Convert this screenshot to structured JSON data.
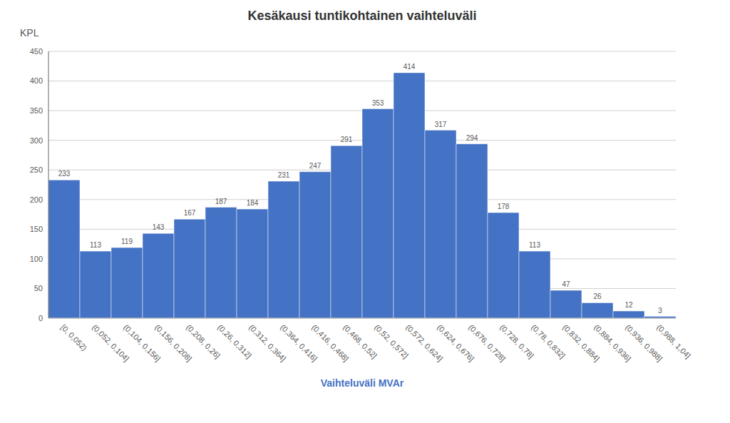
{
  "chart_data": {
    "type": "bar",
    "title": "Kesäkausi tuntikohtainen vaihteluväli",
    "xlabel": "Vaihteluväli MVAr",
    "ylabel": "KPL",
    "categories": [
      "[0, 0,052)",
      "(0,052, 0,104]",
      "(0,104, 0,156]",
      "(0,156, 0,208]",
      "(0,208, 0,26]",
      "(0,26, 0,312]",
      "(0,312, 0,364]",
      "(0,364, 0,416]",
      "(0,416, 0,468]",
      "(0,468, 0,52]",
      "(0,52, 0,572]",
      "(0,572, 0,624]",
      "(0,624, 0,676]",
      "(0,676, 0,728]",
      "(0,728, 0,78]",
      "(0,78, 0,832]",
      "(0,832, 0,884]",
      "(0,884, 0,936]",
      "(0,936, 0,988]",
      "(0,988, 1,04]"
    ],
    "values": [
      233,
      113,
      119,
      143,
      167,
      187,
      184,
      231,
      247,
      291,
      353,
      414,
      317,
      294,
      178,
      113,
      47,
      26,
      12,
      3
    ],
    "color": "#4472C4",
    "ylim": [
      0,
      450
    ],
    "yticks": [
      0,
      50,
      100,
      150,
      200,
      250,
      300,
      350,
      400,
      450
    ],
    "grid": true,
    "data_labels": true
  }
}
